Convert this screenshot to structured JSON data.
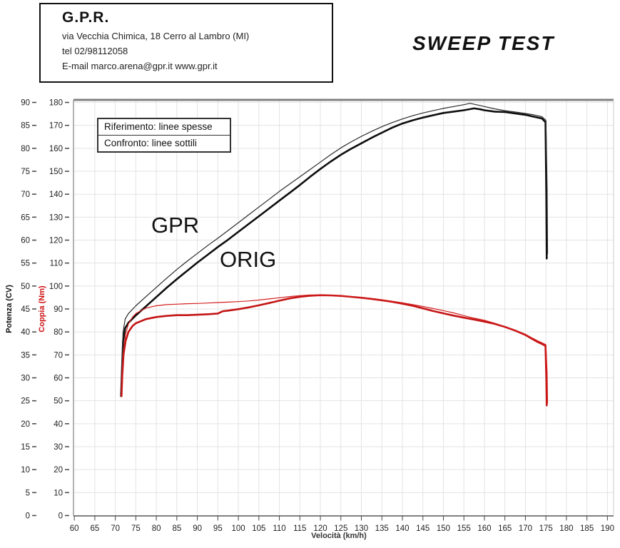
{
  "header": {
    "company": "G.P.R.",
    "address": "via Vecchia Chimica, 18 Cerro al Lambro (MI)",
    "phone": "tel 02/98112058",
    "email_line": "E-mail marco.arena@gpr.it  www.gpr.it"
  },
  "title": "SWEEP TEST",
  "legend": {
    "row1": "Riferimento: linee spesse",
    "row2": "Confronto: linee sottili"
  },
  "annotations": {
    "gpr": "GPR",
    "orig": "ORIG"
  },
  "colors": {
    "power_axis": "#111111",
    "torque_axis": "#cc1111",
    "grid": "#e3e3e3",
    "border": "#808080",
    "tick": "#444444",
    "tick_label": "#222222"
  },
  "chart_data": {
    "type": "line",
    "title": "SWEEP TEST",
    "xlabel": "Velocità (km/h)",
    "ylabel_power": "Potenza (CV)",
    "ylabel_torque": "Coppia (Nm)",
    "grid": true,
    "x_ticks": {
      "min": 60,
      "max": 190,
      "step": 5
    },
    "power_ticks": {
      "min": 0,
      "max": 90,
      "step": 5
    },
    "torque_ticks": {
      "min": 0,
      "max": 180,
      "step": 10
    },
    "x_range": [
      59.8,
      191.5
    ],
    "power_range": [
      0,
      90
    ],
    "torque_range": [
      0,
      180
    ],
    "legend_note": "thick = Riferimento (ORIG), thin = Confronto (GPR)",
    "series": [
      {
        "name": "ORIG potenza (riferimento, linea spessa)",
        "axis": "power",
        "unit": "CV",
        "color": "#0d0d0d",
        "width": 2.6,
        "points": [
          [
            71.4,
            26
          ],
          [
            71.6,
            31
          ],
          [
            71.9,
            38
          ],
          [
            72.4,
            40.8
          ],
          [
            73.2,
            42
          ],
          [
            75,
            43.6
          ],
          [
            77.5,
            45.6
          ],
          [
            80,
            47.6
          ],
          [
            82.5,
            49.6
          ],
          [
            85,
            51.5
          ],
          [
            87.5,
            53.3
          ],
          [
            90,
            55.1
          ],
          [
            92.5,
            56.8
          ],
          [
            95,
            58.5
          ],
          [
            97.5,
            60.1
          ],
          [
            100,
            61.8
          ],
          [
            102.5,
            63.5
          ],
          [
            105,
            65.2
          ],
          [
            107.5,
            66.9
          ],
          [
            110,
            68.6
          ],
          [
            112.5,
            70.3
          ],
          [
            115,
            72
          ],
          [
            117.5,
            73.8
          ],
          [
            120,
            75.5
          ],
          [
            122.5,
            77.1
          ],
          [
            125,
            78.6
          ],
          [
            127.5,
            79.9
          ],
          [
            130,
            81.1
          ],
          [
            132.5,
            82.3
          ],
          [
            135,
            83.4
          ],
          [
            137.5,
            84.5
          ],
          [
            140,
            85.4
          ],
          [
            142.5,
            86.1
          ],
          [
            145,
            86.7
          ],
          [
            147.5,
            87.2
          ],
          [
            150,
            87.7
          ],
          [
            152.5,
            88
          ],
          [
            155,
            88.3
          ],
          [
            157.5,
            88.7
          ],
          [
            159,
            88.5
          ],
          [
            160,
            88.3
          ],
          [
            162.5,
            88
          ],
          [
            165,
            87.9
          ],
          [
            167.5,
            87.6
          ],
          [
            170,
            87.3
          ],
          [
            172,
            86.9
          ],
          [
            174,
            86.5
          ],
          [
            174.9,
            85.7
          ],
          [
            175.1,
            70
          ],
          [
            175.2,
            56
          ]
        ]
      },
      {
        "name": "GPR potenza (confronto, linea sottile)",
        "axis": "power",
        "unit": "CV",
        "color": "#2a2a2a",
        "width": 1.2,
        "points": [
          [
            71.4,
            27
          ],
          [
            71.6,
            33
          ],
          [
            71.9,
            40
          ],
          [
            72.4,
            42.8
          ],
          [
            73.2,
            44
          ],
          [
            75,
            45.7
          ],
          [
            77.5,
            47.7
          ],
          [
            80,
            49.7
          ],
          [
            82.5,
            51.7
          ],
          [
            85,
            53.6
          ],
          [
            87.5,
            55.4
          ],
          [
            90,
            57.1
          ],
          [
            92.5,
            58.8
          ],
          [
            95,
            60.4
          ],
          [
            97.5,
            62.1
          ],
          [
            100,
            63.8
          ],
          [
            102.5,
            65.5
          ],
          [
            105,
            67.2
          ],
          [
            107.5,
            68.9
          ],
          [
            110,
            70.6
          ],
          [
            112.5,
            72.2
          ],
          [
            115,
            73.8
          ],
          [
            117.5,
            75.4
          ],
          [
            120,
            77
          ],
          [
            122.5,
            78.6
          ],
          [
            125,
            80.1
          ],
          [
            127.5,
            81.4
          ],
          [
            130,
            82.6
          ],
          [
            132.5,
            83.7
          ],
          [
            135,
            84.7
          ],
          [
            137.5,
            85.6
          ],
          [
            140,
            86.4
          ],
          [
            142.5,
            87.1
          ],
          [
            145,
            87.7
          ],
          [
            147.5,
            88.2
          ],
          [
            150,
            88.7
          ],
          [
            152.5,
            89.1
          ],
          [
            155,
            89.5
          ],
          [
            156.5,
            89.8
          ],
          [
            158,
            89.5
          ],
          [
            160,
            89.1
          ],
          [
            162.5,
            88.6
          ],
          [
            165,
            88.2
          ],
          [
            167.5,
            87.9
          ],
          [
            170,
            87.6
          ],
          [
            172,
            87.3
          ],
          [
            174,
            86.9
          ],
          [
            175,
            86.1
          ],
          [
            175.3,
            71
          ],
          [
            175.4,
            57
          ]
        ]
      },
      {
        "name": "ORIG coppia (riferimento, linea spessa)",
        "axis": "torque",
        "unit": "Nm",
        "color": "#c41414",
        "width": 2.6,
        "points": [
          [
            71.5,
            52
          ],
          [
            71.7,
            61
          ],
          [
            72,
            70
          ],
          [
            72.5,
            76
          ],
          [
            73.2,
            80
          ],
          [
            74.2,
            82.6
          ],
          [
            75,
            83.8
          ],
          [
            77.5,
            85.6
          ],
          [
            80,
            86.5
          ],
          [
            82.5,
            87
          ],
          [
            85,
            87.3
          ],
          [
            87.5,
            87.3
          ],
          [
            90,
            87.5
          ],
          [
            92.5,
            87.7
          ],
          [
            95,
            88
          ],
          [
            96.2,
            89
          ],
          [
            97.5,
            89.3
          ],
          [
            100,
            89.9
          ],
          [
            102.5,
            90.7
          ],
          [
            105,
            91.6
          ],
          [
            107.5,
            92.6
          ],
          [
            110,
            93.6
          ],
          [
            112.5,
            94.6
          ],
          [
            115,
            95.3
          ],
          [
            117.5,
            95.8
          ],
          [
            120,
            96
          ],
          [
            122.5,
            95.9
          ],
          [
            125,
            95.7
          ],
          [
            127.5,
            95.3
          ],
          [
            130,
            94.9
          ],
          [
            132.5,
            94.4
          ],
          [
            135,
            93.8
          ],
          [
            137.5,
            93.1
          ],
          [
            140,
            92.3
          ],
          [
            142.5,
            91.4
          ],
          [
            145,
            90.3
          ],
          [
            147.5,
            89.1
          ],
          [
            150,
            88.1
          ],
          [
            152.5,
            87.1
          ],
          [
            155,
            86.2
          ],
          [
            157.5,
            85.4
          ],
          [
            160,
            84.5
          ],
          [
            162.5,
            83.5
          ],
          [
            165,
            82.2
          ],
          [
            167.5,
            80.6
          ],
          [
            170,
            78.7
          ],
          [
            171.5,
            77.1
          ],
          [
            173,
            75.6
          ],
          [
            174,
            74.8
          ],
          [
            174.9,
            73.9
          ],
          [
            175.1,
            60
          ],
          [
            175.2,
            48
          ]
        ]
      },
      {
        "name": "GPR coppia (confronto, linea sottile)",
        "axis": "torque",
        "unit": "Nm",
        "color": "#d42020",
        "width": 1.2,
        "points": [
          [
            71.5,
            54
          ],
          [
            71.7,
            63
          ],
          [
            72,
            72
          ],
          [
            72.5,
            79
          ],
          [
            73.2,
            83.5
          ],
          [
            74.2,
            86.5
          ],
          [
            75,
            88
          ],
          [
            77.5,
            90.4
          ],
          [
            80,
            91.4
          ],
          [
            82.5,
            91.9
          ],
          [
            85,
            92.1
          ],
          [
            87.5,
            92.3
          ],
          [
            90,
            92.4
          ],
          [
            92.5,
            92.6
          ],
          [
            95,
            92.8
          ],
          [
            97.5,
            93
          ],
          [
            100,
            93.2
          ],
          [
            102.5,
            93.5
          ],
          [
            105,
            93.9
          ],
          [
            107.5,
            94.4
          ],
          [
            110,
            94.9
          ],
          [
            112.5,
            95.4
          ],
          [
            115,
            95.8
          ],
          [
            117.5,
            96.1
          ],
          [
            120,
            96.1
          ],
          [
            122.5,
            96
          ],
          [
            125,
            95.8
          ],
          [
            127.5,
            95.4
          ],
          [
            130,
            95
          ],
          [
            132.5,
            94.6
          ],
          [
            135,
            94
          ],
          [
            137.5,
            93.4
          ],
          [
            140,
            92.7
          ],
          [
            142.5,
            91.9
          ],
          [
            145,
            91.1
          ],
          [
            147.5,
            90.2
          ],
          [
            150,
            89.3
          ],
          [
            152.5,
            88.3
          ],
          [
            155,
            87.1
          ],
          [
            157.5,
            86
          ],
          [
            160,
            85.1
          ],
          [
            162.5,
            83.8
          ],
          [
            165,
            82.3
          ],
          [
            167.5,
            80.8
          ],
          [
            170,
            79
          ],
          [
            171.5,
            77.5
          ],
          [
            173,
            76.1
          ],
          [
            174,
            75.3
          ],
          [
            175,
            74.4
          ],
          [
            175.3,
            62
          ],
          [
            175.4,
            49
          ]
        ]
      }
    ]
  }
}
